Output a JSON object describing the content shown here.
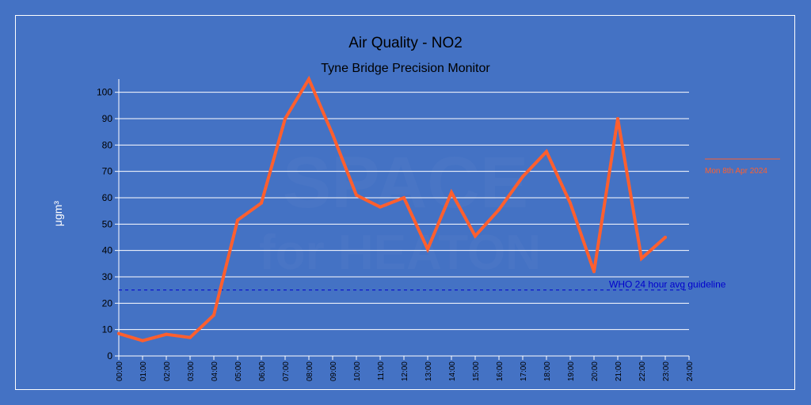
{
  "chart_data": {
    "type": "line",
    "title": "Air Quality - NO2",
    "subtitle": "Tyne Bridge Precision Monitor",
    "watermark_lines": [
      "SPACE",
      "for HEATON"
    ],
    "xlabel": "",
    "ylabel": "μgm³",
    "ylim": [
      0,
      105
    ],
    "yticks": [
      0,
      10,
      20,
      30,
      40,
      50,
      60,
      70,
      80,
      90,
      100
    ],
    "x_ticks": [
      "00:00",
      "01:00",
      "02:00",
      "03:00",
      "04:00",
      "05:00",
      "06:00",
      "07:00",
      "08:00",
      "09:00",
      "10:00",
      "11:00",
      "12:00",
      "13:00",
      "14:00",
      "15:00",
      "16:00",
      "17:00",
      "18:00",
      "19:00",
      "20:00",
      "21:00",
      "22:00",
      "23:00",
      "24:00"
    ],
    "xlim": [
      0,
      24
    ],
    "grid": true,
    "legend_position": "right",
    "series": [
      {
        "name": "Mon 8th Apr 2024",
        "color": "#ff5f2e",
        "x": [
          0,
          1,
          2,
          3,
          4,
          5,
          6,
          7,
          8,
          9,
          10,
          11,
          12,
          13,
          14,
          15,
          16,
          17,
          18,
          19,
          20,
          21,
          22,
          23
        ],
        "values": [
          8.5,
          5.8,
          8.2,
          7,
          15.5,
          51.5,
          58,
          90,
          105,
          84,
          61,
          56.5,
          60,
          40.5,
          62,
          45.5,
          55.5,
          68,
          77.5,
          58,
          32,
          90,
          37,
          45
        ]
      }
    ],
    "reference_line": {
      "label": "WHO 24 hour avg guideline",
      "value": 25,
      "color": "#0000cc"
    }
  }
}
